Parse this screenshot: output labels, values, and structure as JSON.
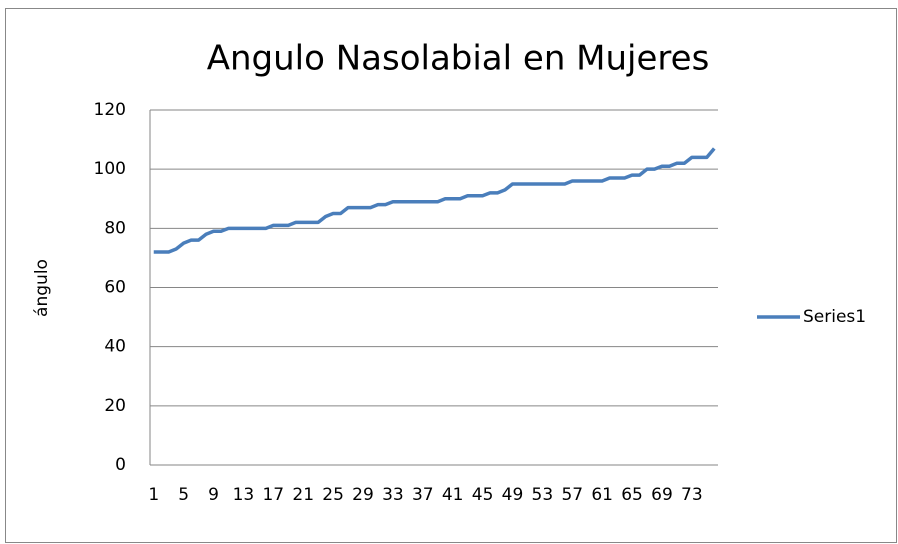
{
  "chart_data": {
    "type": "line",
    "title": "Angulo Nasolabial en Mujeres",
    "y_label": "ángulo",
    "categories": [
      1,
      null,
      null,
      null,
      5,
      null,
      null,
      null,
      9,
      null,
      null,
      null,
      13,
      null,
      null,
      null,
      17,
      null,
      null,
      null,
      21,
      null,
      null,
      null,
      25,
      null,
      null,
      null,
      29,
      null,
      null,
      null,
      33,
      null,
      null,
      null,
      37,
      null,
      null,
      null,
      41,
      null,
      null,
      null,
      45,
      null,
      null,
      null,
      49,
      null,
      null,
      null,
      53,
      null,
      null,
      null,
      57,
      null,
      null,
      null,
      61,
      null,
      null,
      null,
      65,
      null,
      null,
      null,
      69,
      null,
      null,
      null,
      73,
      null,
      null,
      null
    ],
    "series": [
      {
        "name": "Series1",
        "color": "#4a7ebb",
        "values": [
          72,
          72,
          72,
          73,
          75,
          76,
          76,
          78,
          79,
          79,
          80,
          80,
          80,
          80,
          80,
          80,
          81,
          81,
          81,
          82,
          82,
          82,
          82,
          84,
          85,
          85,
          87,
          87,
          87,
          87,
          88,
          88,
          89,
          89,
          89,
          89,
          89,
          89,
          89,
          90,
          90,
          90,
          91,
          91,
          91,
          92,
          92,
          93,
          95,
          95,
          95,
          95,
          95,
          95,
          95,
          95,
          96,
          96,
          96,
          96,
          96,
          97,
          97,
          97,
          98,
          98,
          100,
          100,
          101,
          101,
          102,
          102,
          104,
          104,
          104,
          107
        ]
      }
    ],
    "ylim": [
      0,
      120
    ],
    "yticks": [
      0,
      20,
      40,
      60,
      80,
      100,
      120
    ],
    "grid": true,
    "legend": "right"
  }
}
